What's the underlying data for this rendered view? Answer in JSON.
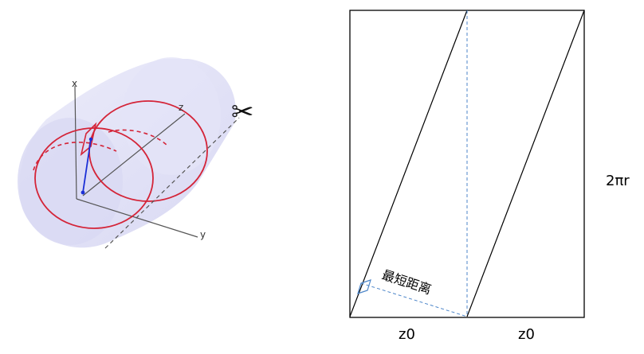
{
  "left_figure": {
    "axes": {
      "x": "x",
      "y": "y",
      "z": "z"
    },
    "scissors_glyph": "✂",
    "colors": {
      "cylinder_fill": "#dcdcf3",
      "cylinder_shade": "#c8c8ee",
      "ring": "#d42438",
      "vector": "#1b2fd6",
      "axis": "#444444",
      "cut_line": "#555555"
    }
  },
  "right_figure": {
    "shortest_distance_label": "最短距离",
    "bottom_labels": [
      "z0",
      "z0"
    ],
    "side_label": "2πr",
    "colors": {
      "frame": "#000000",
      "dashed": "#4d86c9",
      "right_angle": "#4d86c9"
    }
  }
}
